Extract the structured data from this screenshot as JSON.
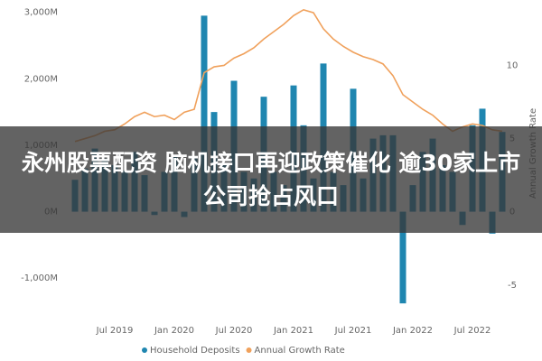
{
  "chart_data": {
    "type": "bar-line",
    "categories": [
      null,
      null,
      null,
      null,
      "Jul 2019",
      null,
      null,
      null,
      null,
      null,
      "Jan 2020",
      null,
      null,
      null,
      null,
      null,
      "Jul 2020",
      null,
      null,
      null,
      null,
      null,
      "Jan 2021",
      null,
      null,
      null,
      null,
      null,
      "Jul 2021",
      null,
      null,
      null,
      null,
      null,
      "Jan 2022",
      null,
      null,
      null,
      null,
      null,
      "Jul 2022",
      null,
      null,
      null
    ],
    "series": [
      {
        "name": "Household Deposits",
        "type": "bar",
        "color": "#1f86b0",
        "values": [
          480,
          650,
          950,
          800,
          700,
          620,
          900,
          550,
          -50,
          600,
          850,
          -80,
          800,
          2950,
          1500,
          700,
          1970,
          600,
          500,
          1730,
          600,
          400,
          1900,
          1300,
          500,
          2230,
          600,
          400,
          1850,
          500,
          1100,
          1150,
          1150,
          -1380,
          400,
          900,
          1100,
          700,
          600,
          -200,
          1300,
          1550,
          -330,
          1200
        ]
      },
      {
        "name": "Annual Growth Rate",
        "type": "line",
        "axis": "y2",
        "color": "#f0a15c",
        "values": [
          4.8,
          5.0,
          5.2,
          5.5,
          5.6,
          6.0,
          6.5,
          6.8,
          6.5,
          6.6,
          6.3,
          6.8,
          7.0,
          9.5,
          9.9,
          10.0,
          10.5,
          10.8,
          11.2,
          11.8,
          12.3,
          12.8,
          13.4,
          13.8,
          13.6,
          12.5,
          11.8,
          11.3,
          10.9,
          10.6,
          10.4,
          10.1,
          9.3,
          8.0,
          7.5,
          7.0,
          6.6,
          6.0,
          5.5,
          5.8,
          6.0,
          5.9,
          5.6,
          5.5
        ]
      }
    ],
    "ylim": [
      -1500,
      3050
    ],
    "yticks": [
      {
        "value": -1000,
        "label": "-1,000M"
      },
      {
        "value": 0,
        "label": "0M"
      },
      {
        "value": 1000,
        "label": "1,000M"
      },
      {
        "value": 2000,
        "label": "2,000M"
      },
      {
        "value": 3000,
        "label": "3,000M"
      }
    ],
    "y2lim": [
      -6.8,
      13.85
    ],
    "y2ticks": [
      -5,
      0,
      5,
      10
    ],
    "y2label": "Annual Growth Rate",
    "grid": false,
    "legend": "bottom"
  },
  "banner": {
    "headline": "永州股票配资 脑机接口再迎政策催化 逾30家上市公司抢占风口"
  }
}
